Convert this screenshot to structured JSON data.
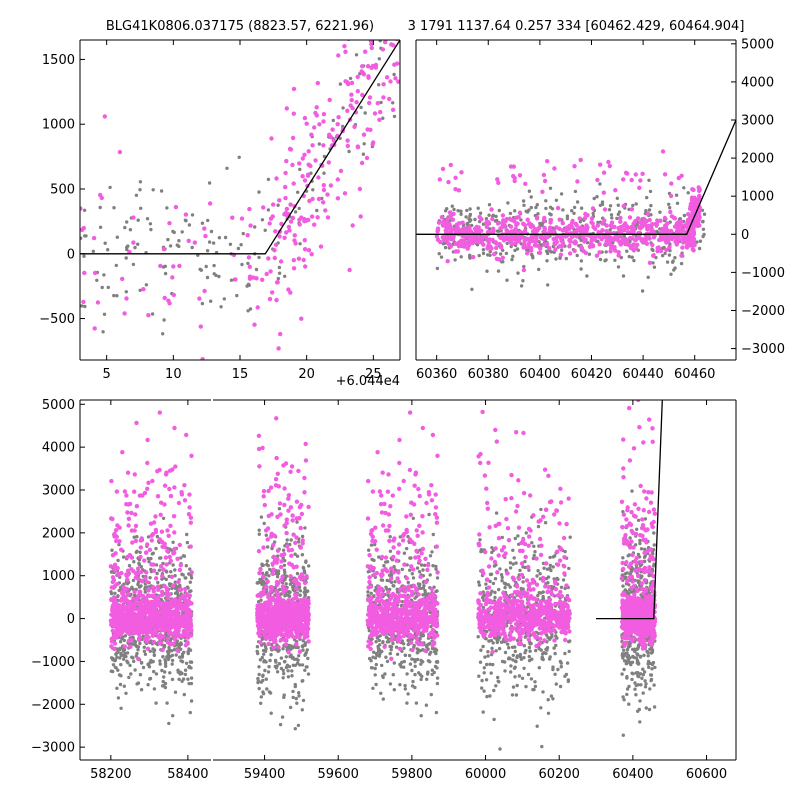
{
  "titles": {
    "left": "BLG41K0806.037175 (8823.57, 6221.96)",
    "right": "3 1791 1137.64 0.257 334 [60462.429, 60464.904]"
  },
  "colors": {
    "magenta": "#f25ce0",
    "grey": "#808080",
    "model": "#000000"
  },
  "chart_data": [
    {
      "type": "scatter",
      "panel": "zoom-left",
      "x_offset_label": "+6.044e4",
      "xlim": [
        3,
        27
      ],
      "ylim": [
        -820,
        1650
      ],
      "xticks": [
        5,
        10,
        15,
        20,
        25
      ],
      "xtick_labels": [
        "5",
        "10",
        "15",
        "20",
        "25"
      ],
      "yticks": [
        -500,
        0,
        500,
        1000,
        1500
      ],
      "ytick_labels": [
        "−500",
        "0",
        "500",
        "1000",
        "1500"
      ],
      "model": [
        [
          3,
          0
        ],
        [
          16.9,
          0
        ],
        [
          27,
          1650
        ]
      ]
    },
    {
      "type": "scatter",
      "panel": "zoom-right",
      "xlim": [
        60352,
        60476
      ],
      "ylim": [
        -3300,
        5100
      ],
      "xticks": [
        60360,
        60380,
        60400,
        60420,
        60440,
        60460
      ],
      "xtick_labels": [
        "60360",
        "60380",
        "60400",
        "60420",
        "60440",
        "60460"
      ],
      "yticks": [
        -3000,
        -2000,
        -1000,
        0,
        1000,
        2000,
        3000,
        4000,
        5000
      ],
      "ytick_labels": [
        "−3000",
        "−2000",
        "−1000",
        "0",
        "1000",
        "2000",
        "3000",
        "4000",
        "5000"
      ],
      "model": [
        [
          60352,
          0
        ],
        [
          60456.9,
          0
        ],
        [
          60476,
          3000
        ]
      ]
    },
    {
      "type": "scatter",
      "panel": "full-left",
      "xlim": [
        58120,
        58460
      ],
      "ylim": [
        -3300,
        5100
      ],
      "xticks": [
        58200,
        58400
      ],
      "xtick_labels": [
        "58200",
        "58400"
      ],
      "yticks": [
        -3000,
        -2000,
        -1000,
        0,
        1000,
        2000,
        3000,
        4000,
        5000
      ],
      "ytick_labels": [
        "−3000",
        "−2000",
        "−1000",
        "0",
        "1000",
        "2000",
        "3000",
        "4000",
        "5000"
      ]
    },
    {
      "type": "scatter",
      "panel": "full-right",
      "xlim": [
        59260,
        60680
      ],
      "ylim": [
        -3300,
        5100
      ],
      "xticks": [
        59400,
        59600,
        59800,
        60000,
        60200,
        60400,
        60600
      ],
      "xtick_labels": [
        "59400",
        "59600",
        "59800",
        "60000",
        "60200",
        "60400",
        "60600"
      ],
      "model": [
        [
          60300,
          0
        ],
        [
          60456.9,
          0
        ],
        [
          60480,
          5100
        ]
      ]
    }
  ]
}
